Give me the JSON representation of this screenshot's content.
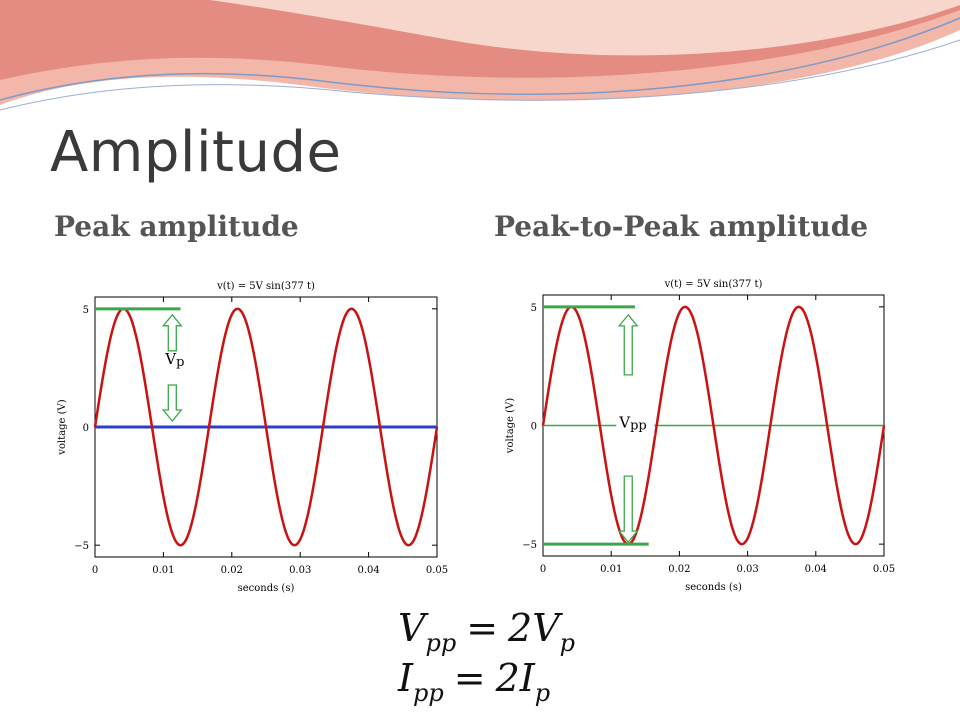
{
  "slide": {
    "title": "Amplitude",
    "subtitle_left": "Peak amplitude",
    "subtitle_right": "Peak-to-Peak amplitude",
    "colors": {
      "signal": "#cc1111",
      "marker": "#3aa84a",
      "baseline_left": "#2b3fc8",
      "title": "#3a3a3a",
      "banner": "#e8807a"
    },
    "formulas": [
      {
        "lhs": "V",
        "lhs_sub": "pp",
        "op": "=",
        "rhs": "2V",
        "rhs_sub": "p"
      },
      {
        "lhs": "I",
        "lhs_sub": "pp",
        "op": "=",
        "rhs": "2I",
        "rhs_sub": "p"
      }
    ]
  },
  "chart_data": [
    {
      "type": "line",
      "title": "v(t) = 5V sin(377 t)",
      "xlabel": "seconds (s)",
      "ylabel": "voltage (V)",
      "xlim": [
        0,
        0.05
      ],
      "ylim": [
        -5.5,
        5.5
      ],
      "xticks": [
        0,
        0.01,
        0.02,
        0.03,
        0.04,
        0.05
      ],
      "xtick_labels": [
        "0",
        "0.01",
        "0.02",
        "0.03",
        "0.04",
        "0.05"
      ],
      "yticks": [
        -5,
        0,
        5
      ],
      "ytick_labels": [
        "−5",
        "0",
        "5"
      ],
      "grid": false,
      "series": [
        {
          "function": "sin",
          "amplitude": 5,
          "omega": 377,
          "x_range": [
            0,
            0.05
          ],
          "color": "#cc1111"
        }
      ],
      "baseline": {
        "y": 0,
        "color": "#2b3fc8"
      },
      "annotation": {
        "label": "V",
        "label_sub": "p",
        "style": "peak",
        "from_y": 0,
        "to_y": 5,
        "peak_line_x": [
          0,
          0.0125
        ],
        "arrow_x": 0.0113
      }
    },
    {
      "type": "line",
      "title": "v(t) = 5V sin(377 t)",
      "xlabel": "seconds (s)",
      "ylabel": "voltage (V)",
      "xlim": [
        0,
        0.05
      ],
      "ylim": [
        -5.5,
        5.5
      ],
      "xticks": [
        0,
        0.01,
        0.02,
        0.03,
        0.04,
        0.05
      ],
      "xtick_labels": [
        "0",
        "0.01",
        "0.02",
        "0.03",
        "0.04",
        "0.05"
      ],
      "yticks": [
        -5,
        0,
        5
      ],
      "ytick_labels": [
        "−5",
        "0",
        "5"
      ],
      "grid": false,
      "series": [
        {
          "function": "sin",
          "amplitude": 5,
          "omega": 377,
          "x_range": [
            0,
            0.05
          ],
          "color": "#cc1111"
        }
      ],
      "baseline": {
        "y": 0,
        "color": "#3aa84a"
      },
      "annotation": {
        "label": "V",
        "label_sub": "pp",
        "style": "peak-to-peak",
        "from_y": -5,
        "to_y": 5,
        "peak_line_x": [
          0,
          0.0135
        ],
        "trough_line_x": [
          0,
          0.0155
        ],
        "arrow_x": 0.0125
      }
    }
  ]
}
